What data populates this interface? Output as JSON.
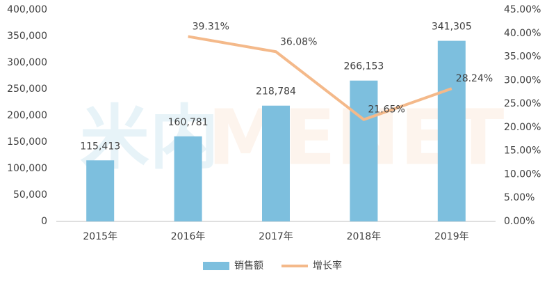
{
  "chart_data": {
    "type": "bar-line",
    "watermark": [
      "米内",
      "MENET"
    ],
    "categories": [
      "2015年",
      "2016年",
      "2017年",
      "2018年",
      "2019年"
    ],
    "series": [
      {
        "name": "销售额",
        "type": "bar",
        "color": "#7dbfde",
        "values": [
          115413,
          160781,
          218784,
          266153,
          341305
        ],
        "value_labels": [
          "115,413",
          "160,781",
          "218,784",
          "266,153",
          "341,305"
        ]
      },
      {
        "name": "增长率",
        "type": "line",
        "axis": "y2",
        "color": "#f4b98a",
        "values": [
          null,
          39.31,
          36.08,
          21.65,
          28.24
        ],
        "value_labels": [
          null,
          "39.31%",
          "36.08%",
          "21.65%",
          "28.24%"
        ]
      }
    ],
    "ylim": [
      0,
      400000
    ],
    "yticks": [
      0,
      {
        "value": 50000,
        "label": "50,000"
      },
      {
        "value": 100000,
        "label": "100,000"
      },
      {
        "value": 150000,
        "label": "150,000"
      },
      {
        "value": 200000,
        "label": "200,000"
      },
      {
        "value": 250000,
        "label": "250,000"
      },
      {
        "value": 300000,
        "label": "300,000"
      },
      {
        "value": 350000,
        "label": "350,000"
      },
      {
        "value": 400000,
        "label": "400,000"
      }
    ],
    "y2lim": [
      0,
      45
    ],
    "y2ticks": [
      {
        "value": 0,
        "label": "0.00%"
      },
      {
        "value": 5,
        "label": "5.00%"
      },
      {
        "value": 10,
        "label": "10.00%"
      },
      {
        "value": 15,
        "label": "15.00%"
      },
      {
        "value": 20,
        "label": "20.00%"
      },
      {
        "value": 25,
        "label": "25.00%"
      },
      {
        "value": 30,
        "label": "30.00%"
      },
      {
        "value": 35,
        "label": "35.00%"
      },
      {
        "value": 40,
        "label": "40.00%"
      },
      {
        "value": 45,
        "label": "45.00%"
      }
    ],
    "grid": false,
    "legend": "bottom"
  }
}
